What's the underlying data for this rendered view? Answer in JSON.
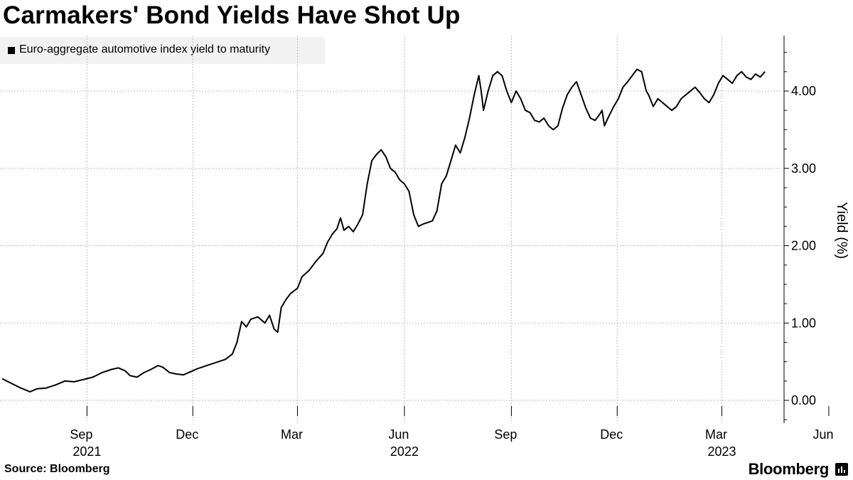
{
  "title": "Carmakers' Bond Yields Have Shot Up",
  "legend": {
    "label": "Euro-aggregate automotive index yield to maturity",
    "color": "#000000"
  },
  "footer": {
    "source": "Source: Bloomberg",
    "brand": "Bloomberg"
  },
  "brand_icon": "bloomberg-terminal-icon",
  "chart_data": {
    "type": "line",
    "title": "Carmakers' Bond Yields Have Shot Up",
    "ylabel": "Yield (%)",
    "xlabel": "",
    "ylim": [
      -0.3,
      4.7
    ],
    "yticks": [
      0,
      1,
      2,
      3,
      4
    ],
    "ytick_labels": [
      "0.00",
      "1.00",
      "2.00",
      "3.00",
      "4.00"
    ],
    "xlim": [
      0,
      700
    ],
    "month_ticks": [
      {
        "x": 73,
        "label": "Sep"
      },
      {
        "x": 164,
        "label": "Dec"
      },
      {
        "x": 254,
        "label": "Mar"
      },
      {
        "x": 346,
        "label": "Jun"
      },
      {
        "x": 438,
        "label": "Sep"
      },
      {
        "x": 529,
        "label": "Dec"
      },
      {
        "x": 619,
        "label": "Mar"
      },
      {
        "x": 711,
        "label": "Jun"
      }
    ],
    "year_labels": [
      {
        "x": 73,
        "label": "2021"
      },
      {
        "x": 346,
        "label": "2022"
      },
      {
        "x": 619,
        "label": "2023"
      }
    ],
    "grid": true,
    "legend_position": "top-left",
    "series": [
      {
        "name": "Euro-aggregate automotive index yield to maturity",
        "x_unit": "days since 2021-07-01",
        "points": [
          [
            0,
            0.28
          ],
          [
            8,
            0.22
          ],
          [
            16,
            0.16
          ],
          [
            24,
            0.11
          ],
          [
            30,
            0.15
          ],
          [
            38,
            0.16
          ],
          [
            46,
            0.2
          ],
          [
            54,
            0.25
          ],
          [
            62,
            0.24
          ],
          [
            70,
            0.27
          ],
          [
            78,
            0.3
          ],
          [
            86,
            0.36
          ],
          [
            94,
            0.4
          ],
          [
            100,
            0.42
          ],
          [
            106,
            0.38
          ],
          [
            110,
            0.32
          ],
          [
            116,
            0.3
          ],
          [
            122,
            0.36
          ],
          [
            128,
            0.4
          ],
          [
            134,
            0.45
          ],
          [
            138,
            0.43
          ],
          [
            144,
            0.36
          ],
          [
            150,
            0.34
          ],
          [
            156,
            0.33
          ],
          [
            162,
            0.37
          ],
          [
            168,
            0.41
          ],
          [
            176,
            0.45
          ],
          [
            184,
            0.49
          ],
          [
            192,
            0.53
          ],
          [
            198,
            0.6
          ],
          [
            202,
            0.75
          ],
          [
            206,
            1.02
          ],
          [
            210,
            0.95
          ],
          [
            214,
            1.05
          ],
          [
            220,
            1.08
          ],
          [
            226,
            1.0
          ],
          [
            230,
            1.1
          ],
          [
            234,
            0.92
          ],
          [
            237,
            0.88
          ],
          [
            240,
            1.2
          ],
          [
            244,
            1.3
          ],
          [
            248,
            1.38
          ],
          [
            254,
            1.45
          ],
          [
            258,
            1.6
          ],
          [
            264,
            1.68
          ],
          [
            270,
            1.8
          ],
          [
            276,
            1.9
          ],
          [
            280,
            2.05
          ],
          [
            284,
            2.15
          ],
          [
            288,
            2.22
          ],
          [
            291,
            2.36
          ],
          [
            294,
            2.2
          ],
          [
            298,
            2.25
          ],
          [
            302,
            2.18
          ],
          [
            306,
            2.28
          ],
          [
            310,
            2.4
          ],
          [
            314,
            2.8
          ],
          [
            318,
            3.1
          ],
          [
            322,
            3.18
          ],
          [
            326,
            3.24
          ],
          [
            330,
            3.15
          ],
          [
            334,
            3.0
          ],
          [
            338,
            2.95
          ],
          [
            342,
            2.85
          ],
          [
            346,
            2.8
          ],
          [
            350,
            2.7
          ],
          [
            354,
            2.4
          ],
          [
            358,
            2.25
          ],
          [
            362,
            2.28
          ],
          [
            366,
            2.3
          ],
          [
            370,
            2.32
          ],
          [
            374,
            2.45
          ],
          [
            378,
            2.8
          ],
          [
            382,
            2.9
          ],
          [
            386,
            3.1
          ],
          [
            390,
            3.3
          ],
          [
            394,
            3.2
          ],
          [
            398,
            3.4
          ],
          [
            402,
            3.65
          ],
          [
            406,
            3.95
          ],
          [
            410,
            4.2
          ],
          [
            412,
            4.0
          ],
          [
            414,
            3.75
          ],
          [
            418,
            4.0
          ],
          [
            422,
            4.2
          ],
          [
            426,
            4.25
          ],
          [
            430,
            4.2
          ],
          [
            434,
            4.0
          ],
          [
            438,
            3.85
          ],
          [
            442,
            4.0
          ],
          [
            446,
            3.9
          ],
          [
            450,
            3.75
          ],
          [
            454,
            3.72
          ],
          [
            458,
            3.62
          ],
          [
            462,
            3.6
          ],
          [
            466,
            3.65
          ],
          [
            470,
            3.55
          ],
          [
            474,
            3.5
          ],
          [
            478,
            3.55
          ],
          [
            482,
            3.78
          ],
          [
            486,
            3.95
          ],
          [
            490,
            4.05
          ],
          [
            494,
            4.12
          ],
          [
            498,
            3.95
          ],
          [
            502,
            3.78
          ],
          [
            506,
            3.65
          ],
          [
            510,
            3.62
          ],
          [
            514,
            3.7
          ],
          [
            516,
            3.75
          ],
          [
            518,
            3.55
          ],
          [
            522,
            3.68
          ],
          [
            526,
            3.8
          ],
          [
            530,
            3.9
          ],
          [
            534,
            4.05
          ],
          [
            538,
            4.12
          ],
          [
            542,
            4.2
          ],
          [
            546,
            4.28
          ],
          [
            550,
            4.25
          ],
          [
            554,
            4.0
          ],
          [
            556,
            3.95
          ],
          [
            560,
            3.8
          ],
          [
            564,
            3.9
          ],
          [
            568,
            3.85
          ],
          [
            572,
            3.8
          ],
          [
            576,
            3.75
          ],
          [
            580,
            3.8
          ],
          [
            584,
            3.9
          ],
          [
            588,
            3.95
          ],
          [
            592,
            4.0
          ],
          [
            596,
            4.05
          ],
          [
            600,
            3.98
          ],
          [
            604,
            3.9
          ],
          [
            608,
            3.85
          ],
          [
            612,
            3.95
          ],
          [
            616,
            4.1
          ],
          [
            620,
            4.2
          ],
          [
            624,
            4.15
          ],
          [
            628,
            4.1
          ],
          [
            632,
            4.2
          ],
          [
            636,
            4.25
          ],
          [
            640,
            4.18
          ],
          [
            644,
            4.15
          ],
          [
            648,
            4.22
          ],
          [
            652,
            4.18
          ],
          [
            656,
            4.25
          ]
        ]
      }
    ]
  }
}
